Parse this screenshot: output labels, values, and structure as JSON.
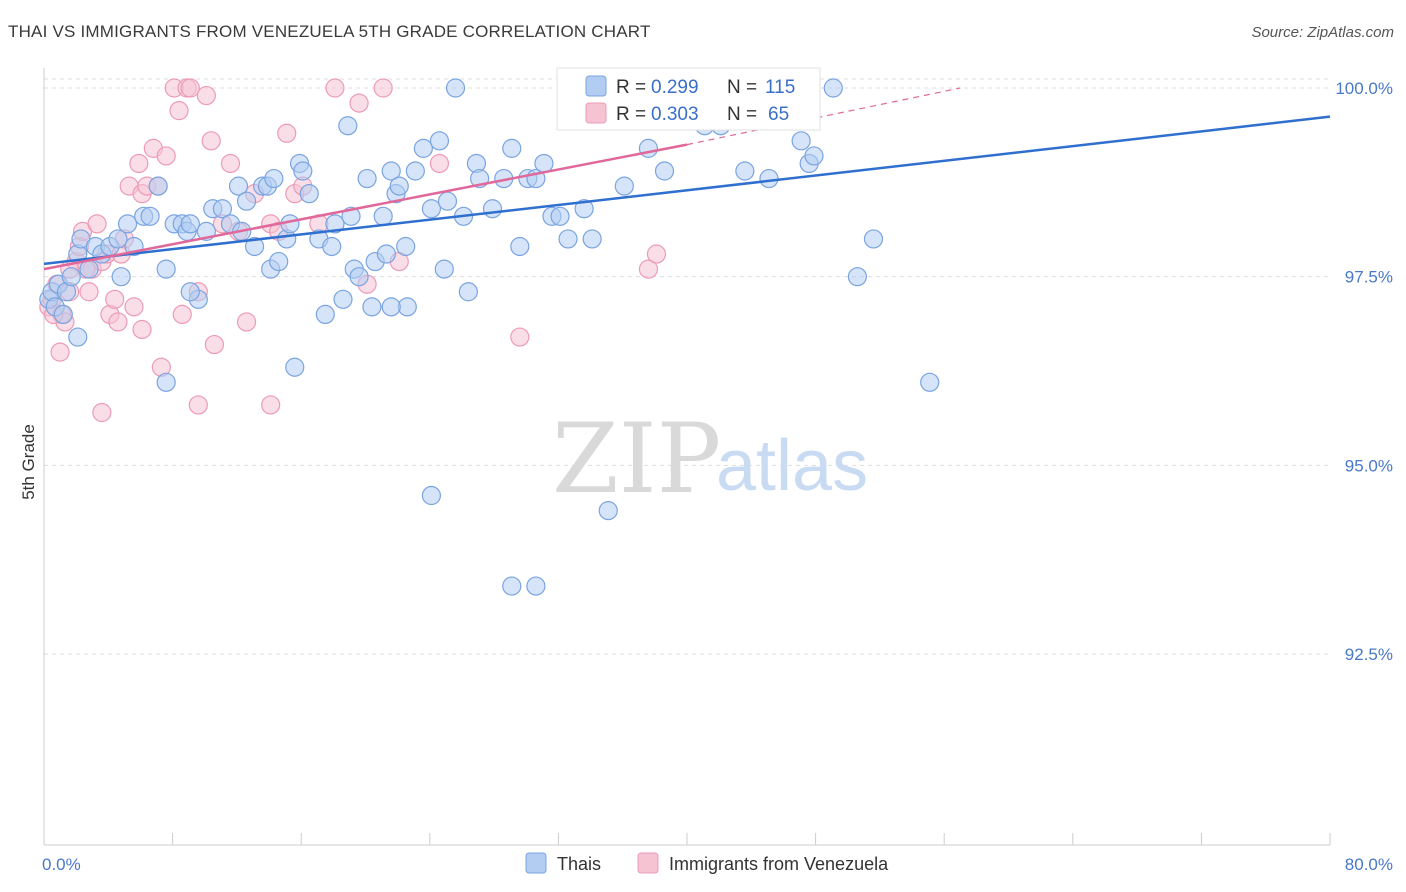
{
  "title": "THAI VS IMMIGRANTS FROM VENEZUELA 5TH GRADE CORRELATION CHART",
  "source": "Source: ZipAtlas.com",
  "watermark": {
    "zip": "ZIP",
    "atlas": "atlas"
  },
  "colors": {
    "thais_fill": "#b3cdf2",
    "thais_stroke": "#7aa4e0",
    "thais_line": "#2f6fcf",
    "venez_fill": "#f6c3d3",
    "venez_stroke": "#ec9bb6",
    "venez_line": "#e0689a",
    "tick_text": "#4a78c8",
    "grid": "#dddddd"
  },
  "legend": {
    "r_label": "R =",
    "n_label": "N =",
    "rows": [
      {
        "r": "0.299",
        "n": "115"
      },
      {
        "r": "0.303",
        "n": "65"
      }
    ]
  },
  "chart_data": {
    "type": "scatter",
    "title": "THAI VS IMMIGRANTS FROM VENEZUELA 5TH GRADE CORRELATION CHART",
    "xlabel": "",
    "ylabel": "5th Grade",
    "xlim": [
      0,
      80
    ],
    "ylim": [
      90.0,
      100.3
    ],
    "x_ticks_labeled": [
      {
        "value": 0,
        "label": "0.0%"
      },
      {
        "value": 80,
        "label": "80.0%"
      }
    ],
    "y_ticks": [
      {
        "value": 100.0,
        "label": "100.0%"
      },
      {
        "value": 97.5,
        "label": "97.5%"
      },
      {
        "value": 95.0,
        "label": "95.0%"
      },
      {
        "value": 92.5,
        "label": "92.5%"
      }
    ],
    "grid": "horizontal dashed",
    "legend_placement": "top-center",
    "series": [
      {
        "name": "Thais",
        "trend": {
          "x0": 0,
          "y0": 97.67,
          "x1": 80,
          "y1": 99.62
        },
        "points": [
          [
            0.3,
            97.2
          ],
          [
            0.5,
            97.3
          ],
          [
            0.7,
            97.1
          ],
          [
            0.9,
            97.4
          ],
          [
            1.2,
            97.0
          ],
          [
            1.4,
            97.3
          ],
          [
            1.7,
            97.5
          ],
          [
            2.1,
            97.8
          ],
          [
            2.3,
            98.0
          ],
          [
            2.8,
            97.6
          ],
          [
            3.2,
            97.9
          ],
          [
            3.6,
            97.8
          ],
          [
            4.1,
            97.9
          ],
          [
            4.6,
            98.0
          ],
          [
            4.8,
            97.5
          ],
          [
            5.2,
            98.2
          ],
          [
            5.6,
            97.9
          ],
          [
            6.2,
            98.3
          ],
          [
            6.6,
            98.3
          ],
          [
            7.1,
            98.7
          ],
          [
            7.6,
            97.6
          ],
          [
            8.1,
            98.2
          ],
          [
            8.6,
            98.2
          ],
          [
            8.9,
            98.1
          ],
          [
            9.1,
            98.2
          ],
          [
            9.6,
            97.2
          ],
          [
            10.1,
            98.1
          ],
          [
            10.5,
            98.4
          ],
          [
            11.1,
            98.4
          ],
          [
            11.6,
            98.2
          ],
          [
            12.1,
            98.7
          ],
          [
            12.3,
            98.1
          ],
          [
            12.6,
            98.5
          ],
          [
            13.1,
            97.9
          ],
          [
            13.6,
            98.7
          ],
          [
            13.9,
            98.7
          ],
          [
            14.1,
            97.6
          ],
          [
            14.3,
            98.8
          ],
          [
            14.6,
            97.7
          ],
          [
            15.1,
            98.0
          ],
          [
            15.3,
            98.2
          ],
          [
            15.6,
            96.3
          ],
          [
            15.9,
            99.0
          ],
          [
            16.1,
            98.9
          ],
          [
            16.5,
            98.6
          ],
          [
            17.1,
            98.0
          ],
          [
            17.5,
            97.0
          ],
          [
            17.9,
            97.9
          ],
          [
            18.1,
            98.2
          ],
          [
            18.6,
            97.2
          ],
          [
            18.9,
            99.5
          ],
          [
            19.1,
            98.3
          ],
          [
            19.3,
            97.6
          ],
          [
            19.6,
            97.5
          ],
          [
            20.1,
            98.8
          ],
          [
            20.4,
            97.1
          ],
          [
            20.6,
            97.7
          ],
          [
            21.1,
            98.3
          ],
          [
            21.3,
            97.8
          ],
          [
            21.6,
            98.9
          ],
          [
            21.9,
            98.6
          ],
          [
            22.1,
            98.7
          ],
          [
            22.5,
            97.9
          ],
          [
            22.6,
            97.1
          ],
          [
            23.1,
            98.9
          ],
          [
            23.6,
            99.2
          ],
          [
            24.1,
            98.4
          ],
          [
            24.6,
            99.3
          ],
          [
            24.9,
            97.6
          ],
          [
            25.1,
            98.5
          ],
          [
            25.6,
            100.0
          ],
          [
            26.1,
            98.3
          ],
          [
            26.4,
            97.3
          ],
          [
            26.9,
            99.0
          ],
          [
            27.1,
            98.8
          ],
          [
            27.9,
            98.4
          ],
          [
            28.6,
            98.8
          ],
          [
            29.1,
            99.2
          ],
          [
            29.6,
            97.9
          ],
          [
            30.1,
            98.8
          ],
          [
            30.6,
            98.8
          ],
          [
            31.1,
            99.0
          ],
          [
            31.6,
            98.3
          ],
          [
            32.1,
            98.3
          ],
          [
            32.6,
            98.0
          ],
          [
            33.6,
            98.4
          ],
          [
            34.1,
            99.8
          ],
          [
            35.1,
            99.8
          ],
          [
            35.6,
            99.9
          ],
          [
            36.1,
            98.7
          ],
          [
            37.1,
            99.9
          ],
          [
            37.6,
            99.2
          ],
          [
            38.6,
            98.9
          ],
          [
            39.1,
            99.9
          ],
          [
            40.1,
            100.0
          ],
          [
            41.1,
            99.5
          ],
          [
            42.1,
            99.5
          ],
          [
            43.6,
            98.9
          ],
          [
            45.1,
            98.8
          ],
          [
            47.1,
            99.3
          ],
          [
            47.6,
            99.0
          ],
          [
            47.9,
            99.1
          ],
          [
            49.1,
            100.0
          ],
          [
            50.6,
            97.5
          ],
          [
            51.6,
            98.0
          ],
          [
            55.1,
            96.1
          ],
          [
            24.1,
            94.6
          ],
          [
            35.1,
            94.4
          ],
          [
            29.1,
            93.4
          ],
          [
            30.6,
            93.4
          ],
          [
            2.1,
            96.7
          ],
          [
            7.6,
            96.1
          ],
          [
            9.1,
            97.3
          ],
          [
            21.6,
            97.1
          ],
          [
            34.1,
            98.0
          ]
        ]
      },
      {
        "name": "Immigrants from Venezuela",
        "trend": {
          "x0": 0,
          "y0": 97.6,
          "x1": 40,
          "y1": 99.25,
          "dash_to_x": 57,
          "dash_to_y": 100.0
        },
        "points": [
          [
            0.3,
            97.1
          ],
          [
            0.5,
            97.2
          ],
          [
            0.8,
            97.4
          ],
          [
            1.0,
            96.5
          ],
          [
            1.1,
            97.0
          ],
          [
            1.3,
            96.9
          ],
          [
            1.6,
            97.3
          ],
          [
            2.0,
            97.7
          ],
          [
            2.2,
            97.9
          ],
          [
            2.4,
            98.1
          ],
          [
            2.8,
            97.3
          ],
          [
            3.0,
            97.6
          ],
          [
            3.3,
            98.2
          ],
          [
            3.6,
            97.7
          ],
          [
            3.9,
            97.8
          ],
          [
            4.1,
            97.0
          ],
          [
            4.4,
            97.2
          ],
          [
            4.8,
            97.8
          ],
          [
            5.0,
            98.0
          ],
          [
            5.3,
            98.7
          ],
          [
            5.6,
            97.1
          ],
          [
            5.9,
            99.0
          ],
          [
            6.1,
            98.6
          ],
          [
            6.4,
            98.7
          ],
          [
            6.8,
            99.2
          ],
          [
            7.1,
            98.7
          ],
          [
            7.3,
            96.3
          ],
          [
            7.6,
            99.1
          ],
          [
            8.1,
            100.0
          ],
          [
            8.4,
            99.7
          ],
          [
            8.6,
            97.0
          ],
          [
            8.9,
            100.0
          ],
          [
            9.1,
            100.0
          ],
          [
            9.6,
            97.3
          ],
          [
            10.1,
            99.9
          ],
          [
            10.4,
            99.3
          ],
          [
            10.6,
            96.6
          ],
          [
            11.1,
            98.2
          ],
          [
            11.6,
            99.0
          ],
          [
            12.1,
            98.1
          ],
          [
            13.1,
            98.6
          ],
          [
            14.1,
            98.2
          ],
          [
            14.6,
            98.1
          ],
          [
            15.1,
            99.4
          ],
          [
            15.6,
            98.6
          ],
          [
            16.1,
            98.7
          ],
          [
            17.1,
            98.2
          ],
          [
            18.1,
            100.0
          ],
          [
            19.6,
            99.8
          ],
          [
            20.1,
            97.4
          ],
          [
            21.1,
            100.0
          ],
          [
            22.1,
            97.7
          ],
          [
            24.6,
            99.0
          ],
          [
            29.6,
            96.7
          ],
          [
            37.6,
            97.6
          ],
          [
            38.1,
            97.8
          ],
          [
            3.6,
            95.7
          ],
          [
            9.6,
            95.8
          ],
          [
            14.1,
            95.8
          ],
          [
            6.1,
            96.8
          ],
          [
            2.6,
            97.6
          ],
          [
            4.6,
            96.9
          ],
          [
            12.6,
            96.9
          ],
          [
            1.6,
            97.6
          ],
          [
            0.6,
            97.0
          ]
        ]
      }
    ]
  },
  "bottom_legend": [
    {
      "label": "Thais"
    },
    {
      "label": "Immigrants from Venezuela"
    }
  ]
}
